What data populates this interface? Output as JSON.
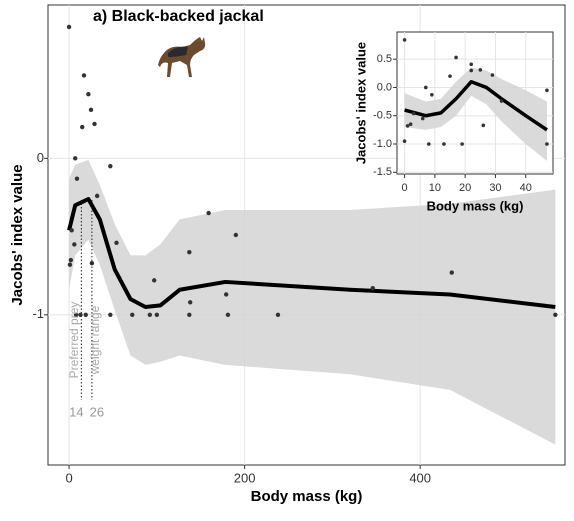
{
  "chart_data": [
    {
      "type": "scatter",
      "title": "a) Black-backed jackal",
      "xlabel": "Body mass (kg)",
      "ylabel": "Jacobs' index value",
      "xlim": [
        -24,
        565
      ],
      "ylim": [
        -1.96,
        0.98
      ],
      "xticks": [
        0,
        200,
        400
      ],
      "yticks": [
        -1,
        0
      ],
      "grid": true,
      "point_color": "#333333",
      "line_color": "#000000",
      "band_color": "#d3d3d3",
      "points": {
        "x": [
          0,
          17,
          22,
          25,
          29,
          15,
          7,
          9,
          32,
          47,
          3,
          6,
          2,
          1,
          54,
          159,
          137,
          190,
          8,
          13,
          19,
          47,
          72,
          92,
          100,
          97,
          137,
          179,
          181,
          238,
          346,
          436,
          554,
          26,
          138
        ],
        "y": [
          0.84,
          0.53,
          0.41,
          0.31,
          0.22,
          0.2,
          0.0,
          -0.13,
          -0.24,
          -0.05,
          -0.46,
          -0.55,
          -0.65,
          -0.68,
          -0.54,
          -0.35,
          -0.6,
          -0.49,
          -1,
          -1,
          -1,
          -1,
          -1,
          -1,
          -1,
          -0.78,
          -1,
          -0.87,
          -1,
          -1,
          -0.83,
          -0.73,
          -1,
          -0.67,
          -0.92
        ]
      },
      "smooth": {
        "x": [
          0,
          7,
          22,
          35,
          52,
          70,
          87,
          104,
          126,
          178,
          320,
          434,
          554
        ],
        "y": [
          -0.46,
          -0.3,
          -0.26,
          -0.39,
          -0.71,
          -0.9,
          -0.95,
          -0.94,
          -0.84,
          -0.79,
          -0.84,
          -0.87,
          -0.95
        ],
        "upper": [
          -0.13,
          -0.04,
          -0.01,
          -0.17,
          -0.42,
          -0.62,
          -0.62,
          -0.55,
          -0.39,
          -0.33,
          -0.33,
          -0.29,
          -0.2
        ],
        "lower": [
          -0.84,
          -0.62,
          -0.52,
          -0.68,
          -0.97,
          -1.26,
          -1.32,
          -1.3,
          -1.26,
          -1.32,
          -1.38,
          -1.48,
          -1.83
        ]
      },
      "annotation": {
        "lines": [
          "Preferred prey",
          "weight range"
        ],
        "values": [
          14,
          26
        ]
      }
    },
    {
      "type": "scatter",
      "xlabel": "Body mass (kg)",
      "ylabel": "Jacobs' index value",
      "xlim": [
        -2.5,
        49
      ],
      "ylim": [
        -1.53,
        0.98
      ],
      "xticks": [
        0,
        10,
        20,
        30,
        40
      ],
      "yticks": [
        {
          "value": -1.5,
          "label": "-1.5"
        },
        {
          "value": -1,
          "label": "-1.0"
        },
        {
          "value": -0.5,
          "label": "-0.5"
        },
        {
          "value": 0,
          "label": "0.0"
        },
        0.5
      ],
      "grid": true,
      "point_color": "#333333",
      "line_color": "#000000",
      "band_color": "#d3d3d3",
      "points": {
        "x": [
          0,
          17,
          22,
          25,
          29,
          15,
          7,
          9,
          32,
          47,
          3,
          6,
          2,
          1,
          8,
          13,
          19,
          47,
          26,
          0,
          22
        ],
        "y": [
          0.84,
          0.53,
          0.41,
          0.31,
          0.22,
          0.2,
          0.0,
          -0.13,
          -0.24,
          -0.05,
          -0.46,
          -0.55,
          -0.65,
          -0.68,
          -1,
          -1,
          -1,
          -1,
          -0.67,
          -0.95,
          0.3
        ]
      },
      "smooth": {
        "x": [
          0,
          7,
          12,
          17,
          22,
          27,
          32,
          40,
          47
        ],
        "y": [
          -0.4,
          -0.5,
          -0.45,
          -0.2,
          0.1,
          0.0,
          -0.2,
          -0.5,
          -0.75
        ],
        "upper": [
          -0.1,
          -0.25,
          -0.2,
          0.1,
          0.35,
          0.3,
          0.15,
          -0.05,
          -0.25
        ],
        "lower": [
          -0.7,
          -0.75,
          -0.7,
          -0.5,
          -0.15,
          -0.3,
          -0.6,
          -1.0,
          -1.3
        ]
      }
    }
  ]
}
